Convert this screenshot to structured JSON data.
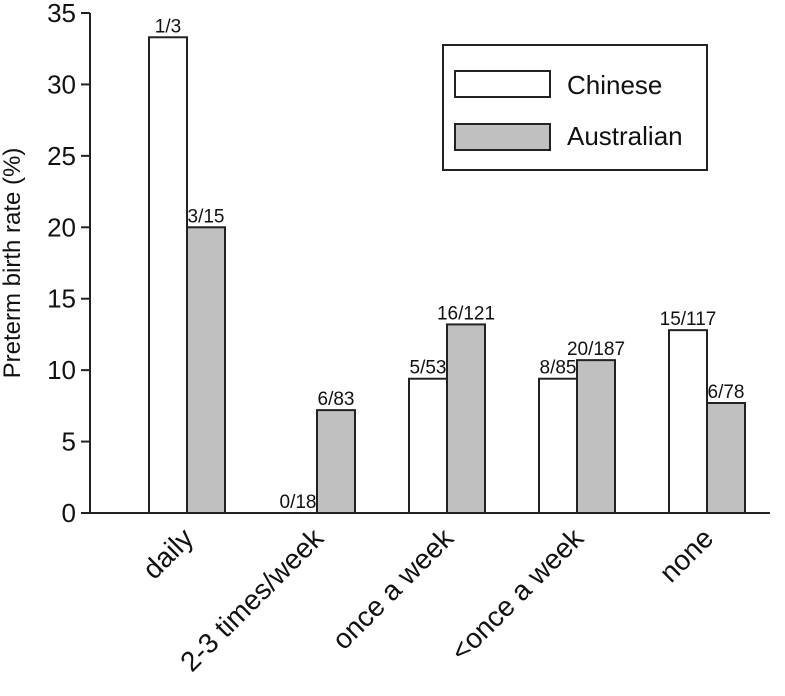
{
  "chart_data": {
    "type": "bar",
    "title": "",
    "xlabel": "",
    "ylabel": "Preterm birth rate (%)",
    "ylim": [
      0,
      35
    ],
    "yticks": [
      0,
      5,
      10,
      15,
      20,
      25,
      30,
      35
    ],
    "categories": [
      "daily",
      "2-3 times/week",
      "once a week",
      "<once a week",
      "none"
    ],
    "legend_position": "top-right",
    "series": [
      {
        "name": "Chinese",
        "color": "#ffffff",
        "values": [
          33.3,
          0,
          9.4,
          9.4,
          12.8
        ],
        "labels": [
          "1/3",
          "0/18",
          "5/53",
          "8/85",
          "15/117"
        ]
      },
      {
        "name": "Australian",
        "color": "#c0c0c0",
        "values": [
          20.0,
          7.2,
          13.2,
          10.7,
          7.7
        ],
        "labels": [
          "3/15",
          "6/83",
          "16/121",
          "20/187",
          "6/78"
        ]
      }
    ]
  }
}
